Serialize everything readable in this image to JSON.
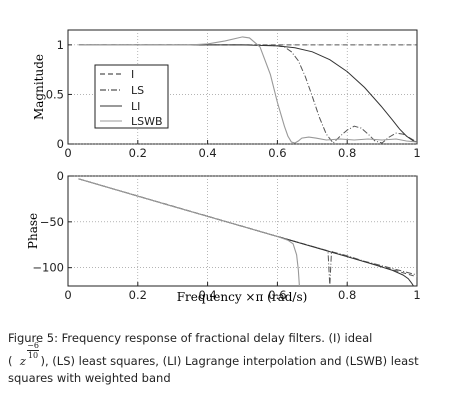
{
  "chart_data": [
    {
      "type": "line",
      "ylabel": "Magnitude",
      "xlabel": "",
      "xlim": [
        0,
        1
      ],
      "ylim": [
        0,
        1.15
      ],
      "xticks": [
        "0",
        "0.2",
        "0.4",
        "0.6",
        "0.8",
        "1"
      ],
      "yticks": [
        "0",
        "0.5",
        "1"
      ],
      "grid": true,
      "legend_position": "left",
      "series": [
        {
          "name": "I",
          "style": "dashed",
          "color": "#555555",
          "x": [
            0.03,
            1.0
          ],
          "y": [
            1.0,
            1.0
          ]
        },
        {
          "name": "LS",
          "style": "dashdot",
          "color": "#555555",
          "x": [
            0.03,
            0.2,
            0.4,
            0.55,
            0.6,
            0.62,
            0.64,
            0.66,
            0.68,
            0.7,
            0.72,
            0.74,
            0.76,
            0.78,
            0.8,
            0.82,
            0.84,
            0.86,
            0.88,
            0.9,
            0.92,
            0.94,
            0.96,
            0.98,
            1.0
          ],
          "y": [
            1.0,
            1.0,
            1.0,
            1.0,
            0.99,
            0.98,
            0.93,
            0.84,
            0.68,
            0.48,
            0.27,
            0.1,
            0.01,
            0.08,
            0.14,
            0.18,
            0.16,
            0.1,
            0.03,
            0.01,
            0.07,
            0.11,
            0.1,
            0.06,
            0.02
          ]
        },
        {
          "name": "LI",
          "style": "solid",
          "color": "#333333",
          "x": [
            0.03,
            0.5,
            0.6,
            0.65,
            0.7,
            0.75,
            0.8,
            0.85,
            0.9,
            0.93,
            0.95,
            0.97,
            0.99,
            1.0
          ],
          "y": [
            1.0,
            1.0,
            0.99,
            0.97,
            0.93,
            0.85,
            0.73,
            0.57,
            0.37,
            0.24,
            0.15,
            0.08,
            0.03,
            0.02
          ]
        },
        {
          "name": "LSWB",
          "style": "solid",
          "color": "#999999",
          "x": [
            0.03,
            0.2,
            0.35,
            0.4,
            0.45,
            0.5,
            0.52,
            0.55,
            0.58,
            0.6,
            0.62,
            0.63,
            0.64,
            0.65,
            0.66,
            0.67,
            0.69,
            0.71,
            0.74,
            0.78,
            0.82,
            0.86,
            0.9,
            0.94,
            0.97,
            1.0
          ],
          "y": [
            1.0,
            1.0,
            1.0,
            1.01,
            1.04,
            1.08,
            1.07,
            0.98,
            0.7,
            0.42,
            0.18,
            0.08,
            0.02,
            0.01,
            0.03,
            0.06,
            0.07,
            0.06,
            0.04,
            0.05,
            0.04,
            0.05,
            0.04,
            0.05,
            0.03,
            0.02
          ]
        }
      ]
    },
    {
      "type": "line",
      "ylabel": "Phase",
      "xlabel": "Frequency ×π (rad/s)",
      "xlim": [
        0,
        1
      ],
      "ylim": [
        -120,
        0
      ],
      "xticks": [
        "0",
        "0.2",
        "0.4",
        "0.6",
        "0.8",
        "1"
      ],
      "yticks": [
        "0",
        "−50",
        "−100"
      ],
      "grid": true,
      "series": [
        {
          "name": "I",
          "style": "dashed",
          "color": "#555555",
          "x": [
            0.03,
            1.0
          ],
          "y": [
            -3,
            -110
          ]
        },
        {
          "name": "LS",
          "style": "dashdot",
          "color": "#555555",
          "x": [
            0.03,
            0.3,
            0.6,
            0.74,
            0.745,
            0.75,
            0.755,
            0.76,
            0.8,
            0.85,
            0.9,
            0.95,
            1.0
          ],
          "y": [
            -3,
            -33,
            -66,
            -81,
            -82,
            -120,
            -82,
            -83,
            -87,
            -93,
            -98,
            -103,
            -108
          ]
        },
        {
          "name": "LI",
          "style": "solid",
          "color": "#333333",
          "x": [
            0.03,
            0.3,
            0.6,
            0.8,
            0.88,
            0.93,
            0.96,
            0.975,
            0.985,
            0.99
          ],
          "y": [
            -3,
            -33,
            -66,
            -88,
            -97,
            -103,
            -108,
            -112,
            -117,
            -120
          ]
        },
        {
          "name": "LSWB",
          "style": "solid",
          "color": "#999999",
          "x": [
            0.03,
            0.3,
            0.5,
            0.6,
            0.63,
            0.645,
            0.655,
            0.66,
            0.663
          ],
          "y": [
            -3,
            -33,
            -55,
            -66,
            -70,
            -74,
            -86,
            -102,
            -120
          ]
        }
      ]
    }
  ],
  "caption": {
    "line1": "Figure  5: Frequency response of fractional delay filters.  (I) ideal",
    "paren_open": "(",
    "base": "z",
    "exp_num": "−6",
    "exp_den": "10",
    "line2_rest": " ), (LS) least squares, (LI) Lagrange interpolation and (LSWB) least",
    "line3": "squares with weighted band"
  }
}
